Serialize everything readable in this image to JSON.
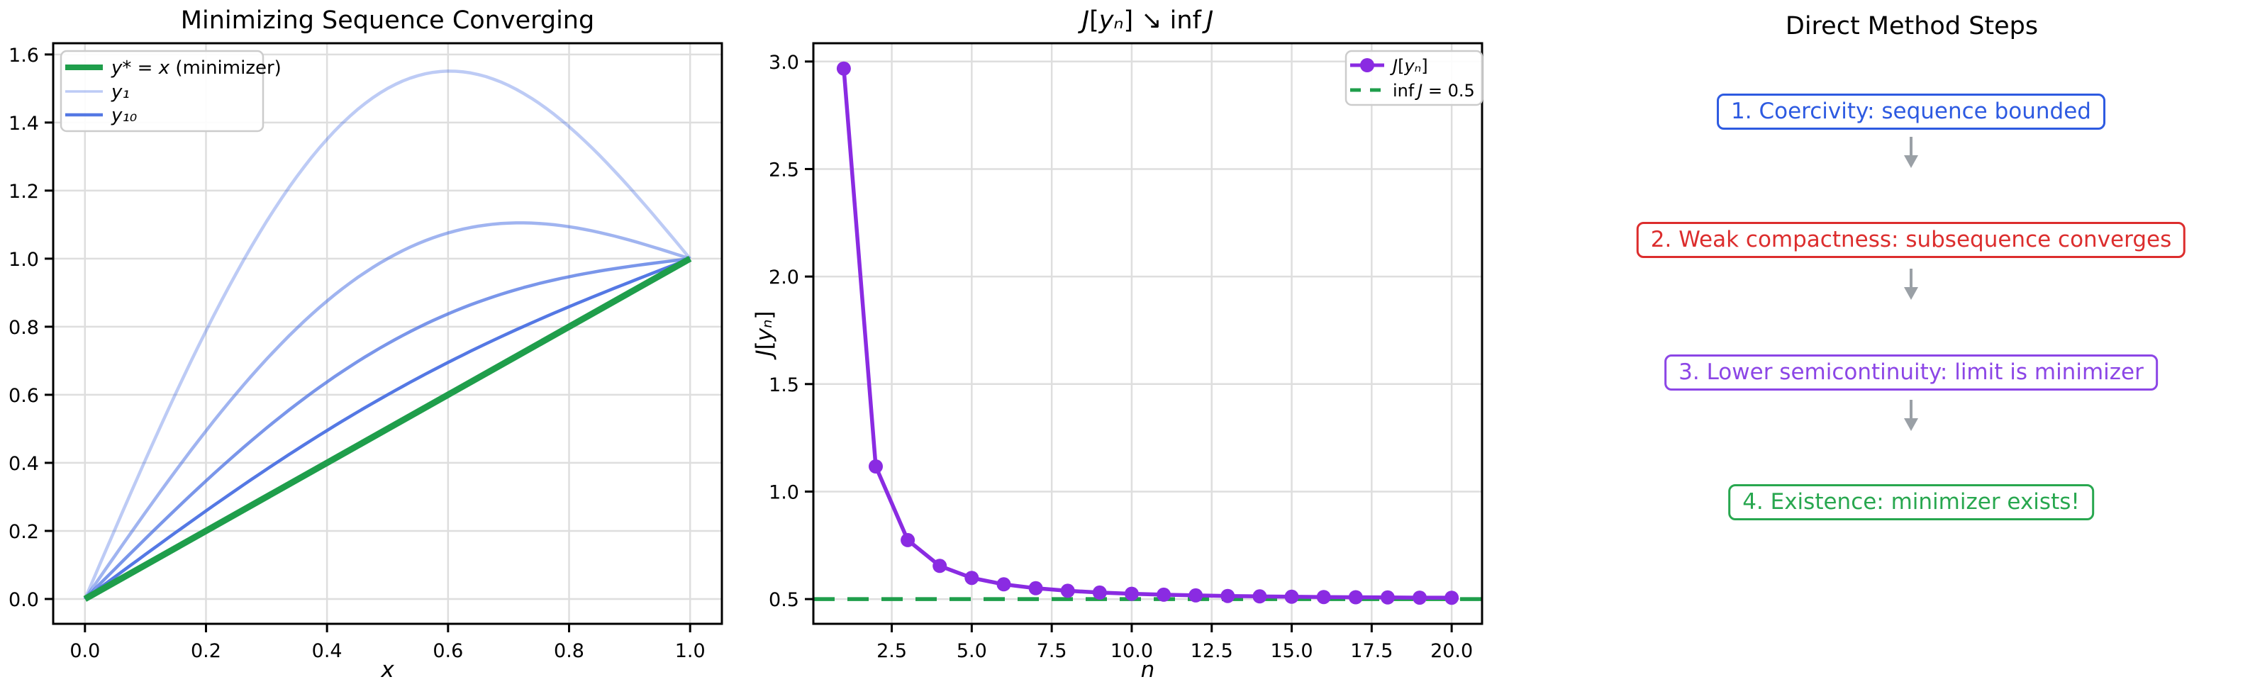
{
  "palette": {
    "green_line": "#1f9e4b",
    "royalblue": "#4169e1",
    "purple": "#8a2be2",
    "grid": "#dedede",
    "spine": "#000000",
    "tick_label": "#000000",
    "legend_border": "#cccccc",
    "arrow_gray": "#9aa0a6"
  },
  "chart_data": [
    {
      "id": "minimizing-sequence",
      "type": "line",
      "title": "Minimizing Sequence Converging",
      "xlabel": "x",
      "ylabel": "",
      "xlim": [
        -0.0525,
        1.0525
      ],
      "ylim": [
        -0.073,
        1.633
      ],
      "grid": true,
      "legend_position": "upper left",
      "xtick_values": [
        0.0,
        0.2,
        0.4,
        0.6,
        0.8,
        1.0
      ],
      "xtick_labels": [
        "0.0",
        "0.2",
        "0.4",
        "0.6",
        "0.8",
        "1.0"
      ],
      "ytick_values": [
        0.0,
        0.2,
        0.4,
        0.6,
        0.8,
        1.0,
        1.2,
        1.4,
        1.6
      ],
      "ytick_labels": [
        "0.0",
        "0.2",
        "0.4",
        "0.6",
        "0.8",
        "1.0",
        "1.2",
        "1.4",
        "1.6"
      ],
      "curve_formula": "y_n(x) = x + sin(pi*x)/n ; minimizer y*(x) = x",
      "series": [
        {
          "label": "y* = x (minimizer)",
          "kind": "identity",
          "color": "#1f9e4b",
          "alpha": 1,
          "linewidth": 9,
          "zorder": 2,
          "legend_segments": [
            [
              "y*",
              1
            ],
            [
              " = ",
              0
            ],
            [
              "x",
              1
            ],
            [
              " (minimizer)",
              0
            ]
          ],
          "swatch": {
            "type": "line",
            "lw": 8
          }
        },
        {
          "label": "y₁",
          "kind": "sin_over_n",
          "n": 1,
          "color": "#4169e1",
          "alpha": 0.35,
          "linewidth": 4.5,
          "zorder": 1,
          "legend_segments": [
            [
              "y₁",
              1
            ]
          ],
          "swatch": {
            "type": "line",
            "lw": 3.5
          }
        },
        {
          "kind": "sin_over_n",
          "n": 2,
          "color": "#4169e1",
          "alpha": 0.5,
          "linewidth": 4.5,
          "zorder": 1
        },
        {
          "kind": "sin_over_n",
          "n": 4,
          "color": "#4169e1",
          "alpha": 0.7,
          "linewidth": 4.5,
          "zorder": 1
        },
        {
          "label": "y₁₀",
          "kind": "sin_over_n",
          "n": 10,
          "color": "#4169e1",
          "alpha": 0.9,
          "linewidth": 4.5,
          "zorder": 1,
          "legend_segments": [
            [
              "y₁₀",
              1
            ]
          ],
          "swatch": {
            "type": "line",
            "lw": 4.5
          }
        }
      ]
    },
    {
      "id": "objective-convergence",
      "type": "line",
      "title": "J[yₙ] ↘ inf J",
      "title_segments": [
        [
          "J",
          1
        ],
        [
          "[",
          0
        ],
        [
          "yₙ",
          1
        ],
        [
          "] ↘ inf ",
          0
        ],
        [
          "J",
          1
        ]
      ],
      "xlabel": "n",
      "ylabel": "J[yₙ]",
      "ylabel_segments": [
        [
          "J",
          1
        ],
        [
          "[",
          0
        ],
        [
          "yₙ",
          1
        ],
        [
          "]",
          0
        ]
      ],
      "xlim": [
        0.05,
        20.95
      ],
      "ylim": [
        0.385,
        3.085
      ],
      "grid": true,
      "legend_position": "upper right",
      "xtick_values": [
        2.5,
        5.0,
        7.5,
        10.0,
        12.5,
        15.0,
        17.5,
        20.0
      ],
      "xtick_labels": [
        "2.5",
        "5.0",
        "7.5",
        "10.0",
        "12.5",
        "15.0",
        "17.5",
        "20.0"
      ],
      "ytick_values": [
        0.5,
        1.0,
        1.5,
        2.0,
        2.5,
        3.0
      ],
      "ytick_labels": [
        "0.5",
        "1.0",
        "1.5",
        "2.0",
        "2.5",
        "3.0"
      ],
      "series": [
        {
          "label": "inf J = 0.5",
          "kind": "hline",
          "value": 0.5,
          "color": "#1f9e4b",
          "alpha": 1,
          "linewidth": 5.5,
          "dash": "30 18",
          "zorder": 1,
          "legend_segments": [
            [
              "inf ",
              0
            ],
            [
              "J",
              1
            ],
            [
              " = 0.5",
              0
            ]
          ],
          "swatch": {
            "type": "dashed",
            "lw": 5
          }
        },
        {
          "label": "J[yₙ]",
          "kind": "points",
          "color": "#8a2be2",
          "alpha": 1,
          "linewidth": 5.5,
          "marker_radius": 10,
          "zorder": 2,
          "x": [
            1,
            2,
            3,
            4,
            5,
            6,
            7,
            8,
            9,
            10,
            11,
            12,
            13,
            14,
            15,
            16,
            17,
            18,
            19,
            20
          ],
          "values": [
            2.9674,
            1.1169,
            0.7742,
            0.6542,
            0.5987,
            0.5685,
            0.5504,
            0.5386,
            0.5305,
            0.5247,
            0.5204,
            0.5171,
            0.5146,
            0.5126,
            0.511,
            0.5096,
            0.5085,
            0.5076,
            0.5068,
            0.5062
          ],
          "legend_segments": [
            [
              "J",
              1
            ],
            [
              "[",
              0
            ],
            [
              "yₙ",
              1
            ],
            [
              "]",
              0
            ]
          ],
          "swatch": {
            "type": "marker-line",
            "lw": 5
          }
        }
      ],
      "legend_order": [
        1,
        0
      ],
      "inf_value": 0.5
    }
  ],
  "flowchart": {
    "title": "Direct Method Steps",
    "steps": [
      {
        "label": "1. Coercivity: sequence bounded",
        "color": "#2d5ae1"
      },
      {
        "label": "2. Weak compactness: subsequence converges",
        "color": "#dc2d2d"
      },
      {
        "label": "3. Lower semicontinuity: limit is minimizer",
        "color": "#8c46e6"
      },
      {
        "label": "4. Existence: minimizer exists!",
        "color": "#28a74f"
      }
    ]
  }
}
